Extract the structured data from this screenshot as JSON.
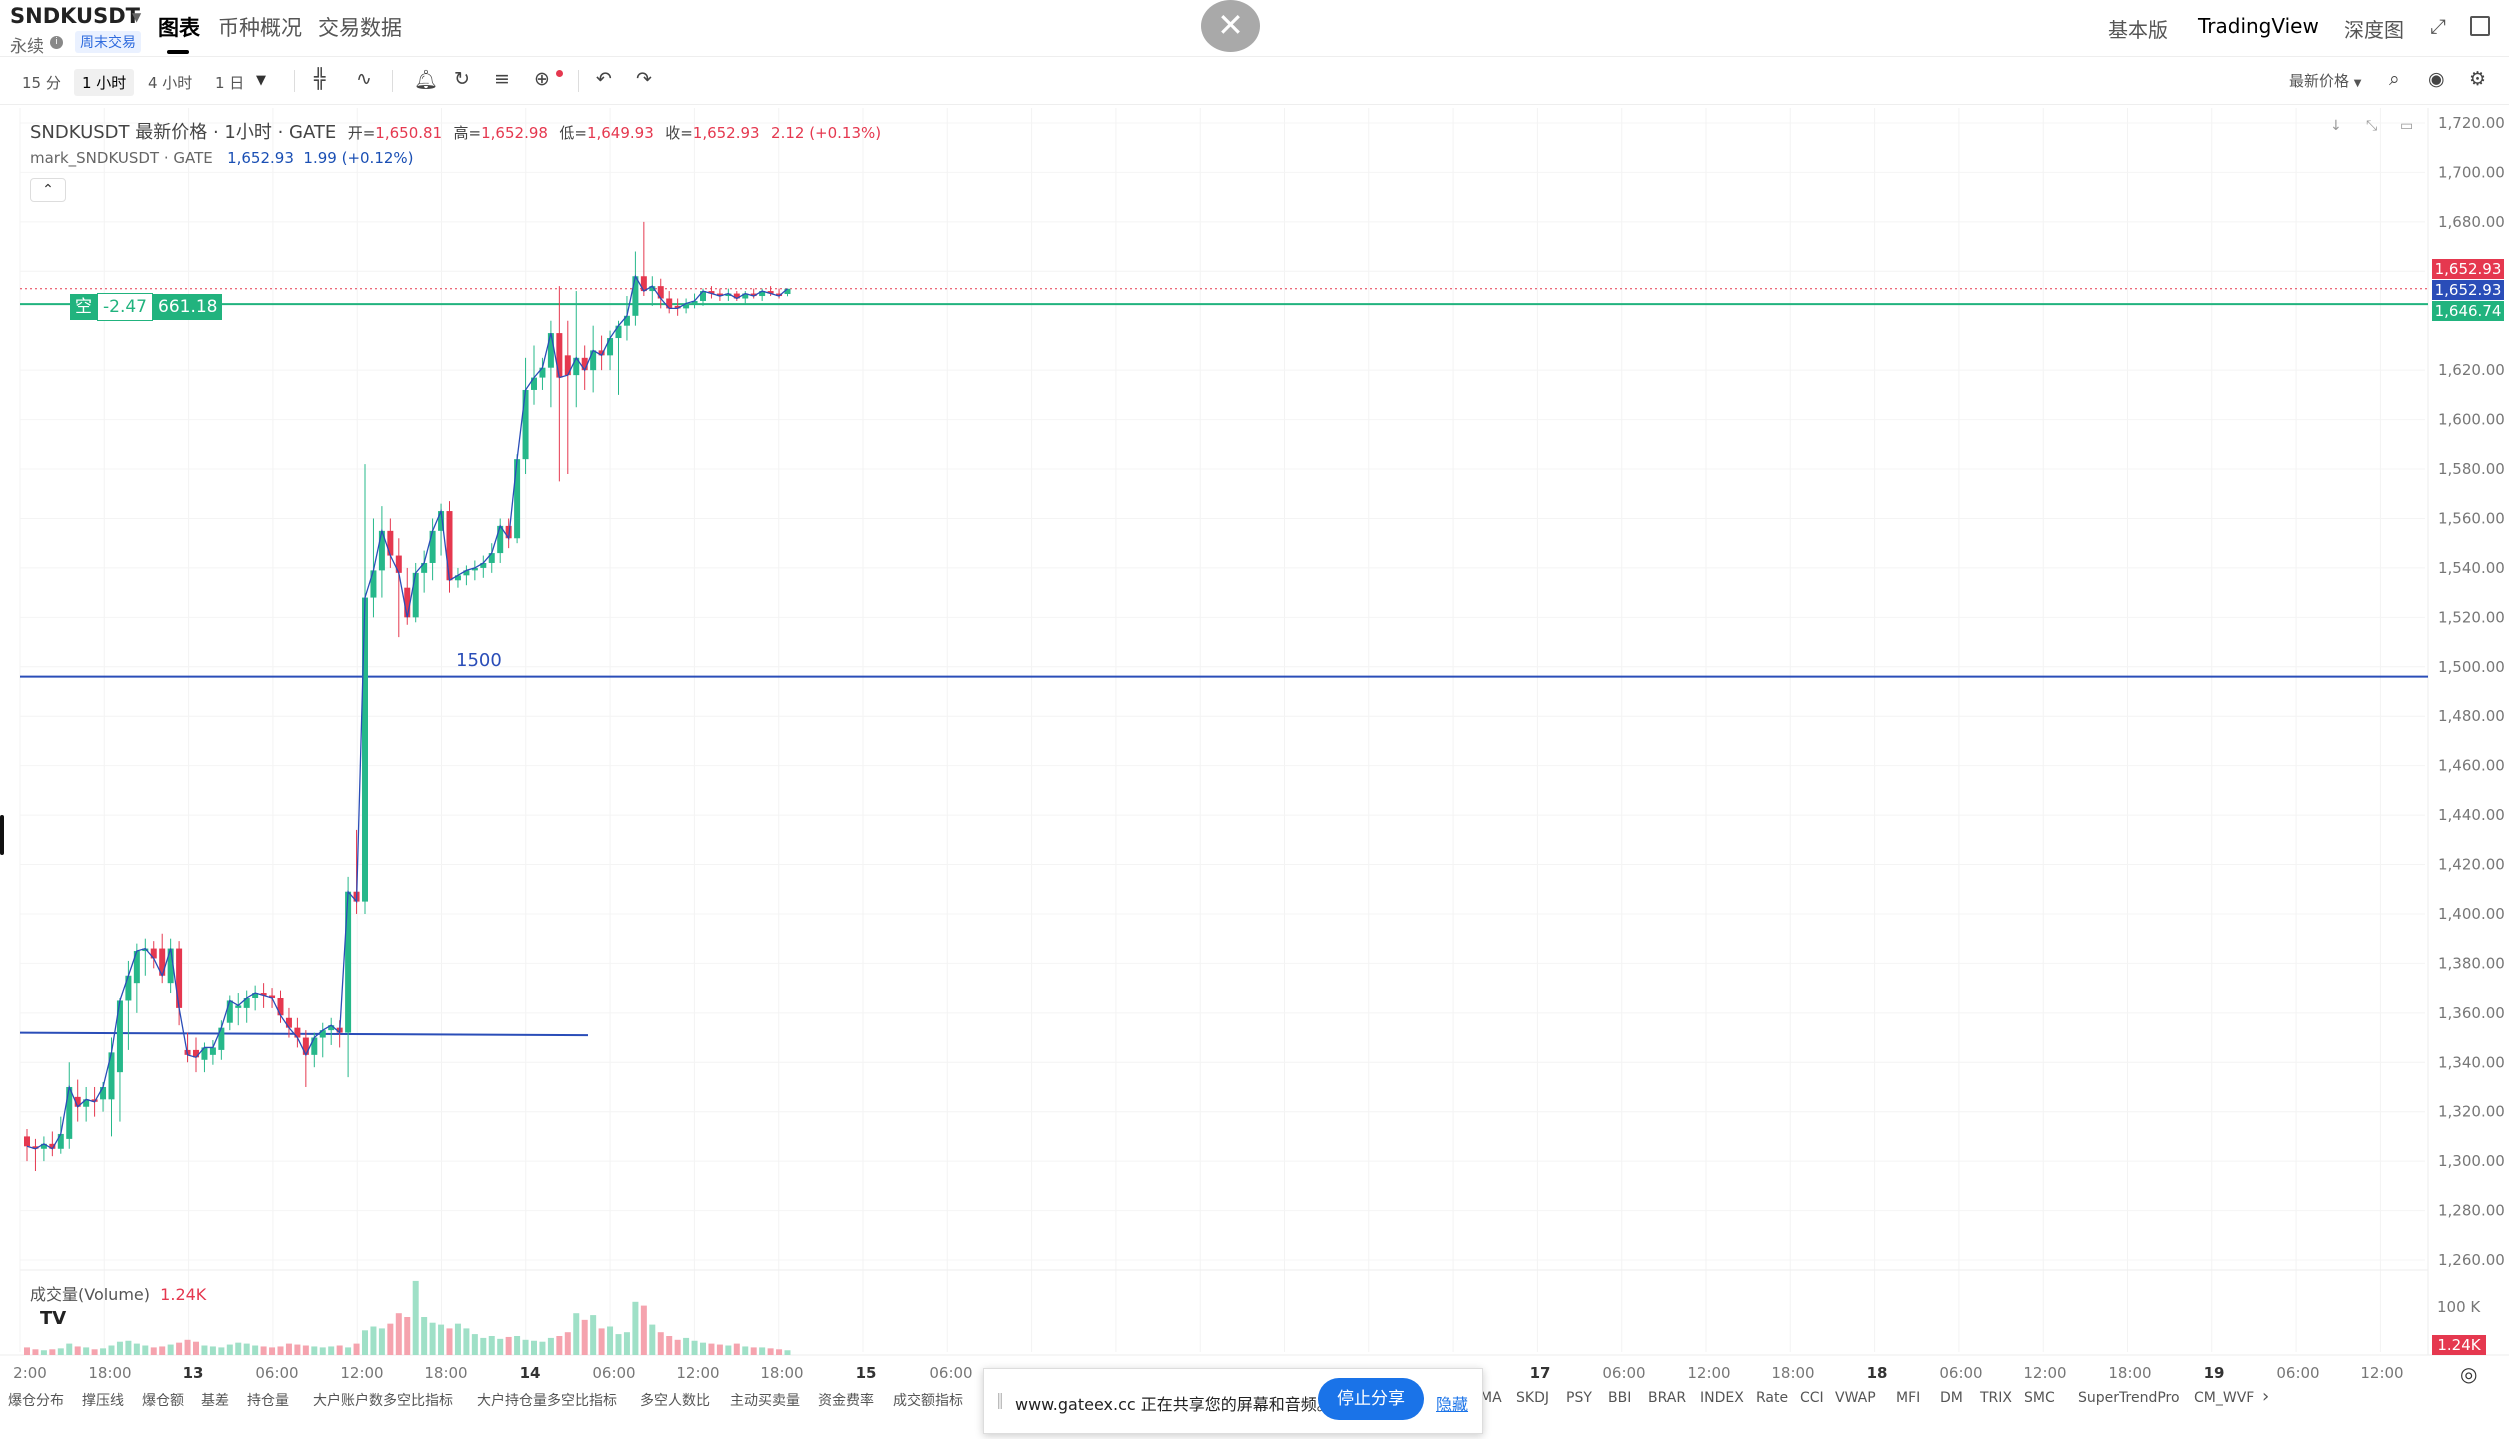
{
  "header": {
    "symbol": "SNDKUSDT",
    "perpetual": "永续",
    "weekend_badge": "周末交易",
    "tabs": [
      "图表",
      "币种概况",
      "交易数据"
    ],
    "right_tabs": [
      "基本版",
      "TradingView",
      "深度图"
    ]
  },
  "toolbar": {
    "timeframes": [
      "15 分",
      "1 小时",
      "4 小时",
      "1 日"
    ],
    "active_timeframe": "1 小时",
    "latest_price_label": "最新价格"
  },
  "legend": {
    "title": "SNDKUSDT 最新价格 · 1小时 · GATE",
    "open_label": "开=",
    "open": "1,650.81",
    "high_label": "高=",
    "high": "1,652.98",
    "low_label": "低=",
    "low": "1,649.93",
    "close_label": "收=",
    "close": "1,652.93",
    "change": "2.12 (+0.13%)",
    "mark_label": "mark_SNDKUSDT · GATE",
    "mark_price": "1,652.93",
    "mark_change": "1.99 (+0.12%)"
  },
  "position": {
    "side": "空",
    "pnl": "-2.47",
    "entry": "661.18"
  },
  "level_label": "1500",
  "price_tags": {
    "last": "1,652.93",
    "mark": "1,652.93",
    "position": "1,646.74"
  },
  "volume": {
    "label": "成交量(Volume)",
    "value": "1.24K",
    "axis_label": "100 K",
    "tag": "1.24K"
  },
  "share_banner": {
    "text": "www.gateex.cc 正在共享您的屏幕和音频。",
    "stop_label": "停止分享",
    "hide_label": "隐藏"
  },
  "indicators_left": [
    "爆仓分布",
    "撑压线",
    "爆仓额",
    "基差",
    "持仓量",
    "大户账户数多空比指标",
    "大户持仓量多空比指标",
    "多空人数比",
    "主动买卖量",
    "资金费率",
    "成交额指标"
  ],
  "indicators_right": [
    "MA",
    "SKDJ",
    "PSY",
    "BBI",
    "BRAR",
    "INDEX",
    "Rate",
    "CCI",
    "VWAP",
    "MFI",
    "DM",
    "TRIX",
    "SMC",
    "SuperTrendPro",
    "CM_WVF"
  ],
  "colors": {
    "up": "#26b88a",
    "down": "#e5384f",
    "level_line": "#2a4db8",
    "position_line": "#21b37e",
    "grid": "#f3f3f3"
  },
  "chart_data": {
    "type": "candlestick",
    "symbol": "SNDKUSDT",
    "interval": "1小时",
    "y_ticks": [
      1260,
      1280,
      1300,
      1320,
      1340,
      1360,
      1380,
      1400,
      1420,
      1440,
      1460,
      1480,
      1500,
      1520,
      1540,
      1560,
      1580,
      1600,
      1620,
      1660,
      1680,
      1700,
      1720
    ],
    "y_tick_labels": [
      "1,260.00",
      "1,280.00",
      "1,300.00",
      "1,320.00",
      "1,340.00",
      "1,360.00",
      "1,380.00",
      "1,400.00",
      "1,420.00",
      "1,440.00",
      "1,460.00",
      "1,480.00",
      "1,500.00",
      "1,520.00",
      "1,540.00",
      "1,560.00",
      "1,580.00",
      "1,600.00",
      "1,620.00",
      "1,660.00",
      "1,680.00",
      "1,700.00",
      "1,720.00"
    ],
    "ylim": [
      1250,
      1725
    ],
    "x_labels": [
      "2:00",
      "18:00",
      "13",
      "06:00",
      "12:00",
      "18:00",
      "14",
      "06:00",
      "12:00",
      "18:00",
      "15",
      "06:00",
      "17",
      "06:00",
      "12:00",
      "18:00",
      "18",
      "06:00",
      "12:00",
      "18:00",
      "19",
      "06:00",
      "12:00"
    ],
    "x_label_bold": [
      "13",
      "14",
      "15",
      "17",
      "18",
      "19"
    ],
    "horizontal_lines": [
      {
        "price": 1496,
        "label": "1500",
        "color": "#2a4db8"
      },
      {
        "price": 1646.74,
        "color": "#21b37e"
      }
    ],
    "trendline": {
      "from_price": 1352,
      "to_price": 1351
    },
    "candles": [
      {
        "o": 1310,
        "h": 1313,
        "l": 1300,
        "c": 1306
      },
      {
        "o": 1306,
        "h": 1309,
        "l": 1296,
        "c": 1305
      },
      {
        "o": 1305,
        "h": 1310,
        "l": 1300,
        "c": 1307
      },
      {
        "o": 1307,
        "h": 1312,
        "l": 1302,
        "c": 1305
      },
      {
        "o": 1305,
        "h": 1318,
        "l": 1303,
        "c": 1311
      },
      {
        "o": 1309,
        "h": 1340,
        "l": 1305,
        "c": 1330
      },
      {
        "o": 1326,
        "h": 1333,
        "l": 1316,
        "c": 1322
      },
      {
        "o": 1322,
        "h": 1330,
        "l": 1316,
        "c": 1325
      },
      {
        "o": 1325,
        "h": 1330,
        "l": 1318,
        "c": 1324
      },
      {
        "o": 1325,
        "h": 1332,
        "l": 1320,
        "c": 1330
      },
      {
        "o": 1325,
        "h": 1350,
        "l": 1310,
        "c": 1344
      },
      {
        "o": 1336,
        "h": 1366,
        "l": 1316,
        "c": 1365
      },
      {
        "o": 1365,
        "h": 1381,
        "l": 1345,
        "c": 1375
      },
      {
        "o": 1372,
        "h": 1388,
        "l": 1360,
        "c": 1385
      },
      {
        "o": 1385,
        "h": 1390,
        "l": 1375,
        "c": 1386
      },
      {
        "o": 1386,
        "h": 1389,
        "l": 1378,
        "c": 1382
      },
      {
        "o": 1386,
        "h": 1392,
        "l": 1372,
        "c": 1375
      },
      {
        "o": 1372,
        "h": 1390,
        "l": 1368,
        "c": 1386
      },
      {
        "o": 1386,
        "h": 1389,
        "l": 1355,
        "c": 1362
      },
      {
        "o": 1345,
        "h": 1352,
        "l": 1340,
        "c": 1343
      },
      {
        "o": 1345,
        "h": 1350,
        "l": 1336,
        "c": 1342
      },
      {
        "o": 1341,
        "h": 1348,
        "l": 1336,
        "c": 1346
      },
      {
        "o": 1343,
        "h": 1349,
        "l": 1339,
        "c": 1346
      },
      {
        "o": 1345,
        "h": 1357,
        "l": 1341,
        "c": 1354
      },
      {
        "o": 1356,
        "h": 1367,
        "l": 1353,
        "c": 1365
      },
      {
        "o": 1362,
        "h": 1368,
        "l": 1355,
        "c": 1363
      },
      {
        "o": 1362,
        "h": 1369,
        "l": 1356,
        "c": 1366
      },
      {
        "o": 1366,
        "h": 1371,
        "l": 1361,
        "c": 1368
      },
      {
        "o": 1368,
        "h": 1372,
        "l": 1362,
        "c": 1367
      },
      {
        "o": 1367,
        "h": 1370,
        "l": 1362,
        "c": 1366
      },
      {
        "o": 1366,
        "h": 1369,
        "l": 1356,
        "c": 1359
      },
      {
        "o": 1358,
        "h": 1362,
        "l": 1350,
        "c": 1354
      },
      {
        "o": 1354,
        "h": 1358,
        "l": 1346,
        "c": 1350
      },
      {
        "o": 1350,
        "h": 1353,
        "l": 1330,
        "c": 1343
      },
      {
        "o": 1343,
        "h": 1352,
        "l": 1338,
        "c": 1350
      },
      {
        "o": 1350,
        "h": 1356,
        "l": 1342,
        "c": 1353
      },
      {
        "o": 1353,
        "h": 1358,
        "l": 1347,
        "c": 1355
      },
      {
        "o": 1354,
        "h": 1357,
        "l": 1346,
        "c": 1352
      },
      {
        "o": 1352,
        "h": 1415,
        "l": 1334,
        "c": 1409
      },
      {
        "o": 1409,
        "h": 1434,
        "l": 1400,
        "c": 1405
      },
      {
        "o": 1405,
        "h": 1582,
        "l": 1400,
        "c": 1528
      },
      {
        "o": 1528,
        "h": 1560,
        "l": 1520,
        "c": 1539
      },
      {
        "o": 1539,
        "h": 1565,
        "l": 1528,
        "c": 1555
      },
      {
        "o": 1555,
        "h": 1560,
        "l": 1540,
        "c": 1545
      },
      {
        "o": 1545,
        "h": 1552,
        "l": 1512,
        "c": 1538
      },
      {
        "o": 1532,
        "h": 1540,
        "l": 1517,
        "c": 1520
      },
      {
        "o": 1520,
        "h": 1542,
        "l": 1518,
        "c": 1538
      },
      {
        "o": 1538,
        "h": 1547,
        "l": 1530,
        "c": 1542
      },
      {
        "o": 1542,
        "h": 1560,
        "l": 1535,
        "c": 1555
      },
      {
        "o": 1555,
        "h": 1566,
        "l": 1545,
        "c": 1563
      },
      {
        "o": 1563,
        "h": 1567,
        "l": 1530,
        "c": 1535
      },
      {
        "o": 1535,
        "h": 1540,
        "l": 1532,
        "c": 1537
      },
      {
        "o": 1537,
        "h": 1541,
        "l": 1533,
        "c": 1539
      },
      {
        "o": 1539,
        "h": 1543,
        "l": 1535,
        "c": 1540
      },
      {
        "o": 1540,
        "h": 1545,
        "l": 1536,
        "c": 1542
      },
      {
        "o": 1542,
        "h": 1550,
        "l": 1538,
        "c": 1546
      },
      {
        "o": 1546,
        "h": 1560,
        "l": 1542,
        "c": 1557
      },
      {
        "o": 1557,
        "h": 1560,
        "l": 1548,
        "c": 1552
      },
      {
        "o": 1552,
        "h": 1586,
        "l": 1550,
        "c": 1584
      },
      {
        "o": 1584,
        "h": 1625,
        "l": 1578,
        "c": 1612
      },
      {
        "o": 1612,
        "h": 1630,
        "l": 1606,
        "c": 1617
      },
      {
        "o": 1617,
        "h": 1625,
        "l": 1612,
        "c": 1621
      },
      {
        "o": 1621,
        "h": 1640,
        "l": 1605,
        "c": 1635
      },
      {
        "o": 1635,
        "h": 1654,
        "l": 1575,
        "c": 1617
      },
      {
        "o": 1626,
        "h": 1640,
        "l": 1578,
        "c": 1618
      },
      {
        "o": 1618,
        "h": 1652,
        "l": 1605,
        "c": 1625
      },
      {
        "o": 1625,
        "h": 1630,
        "l": 1612,
        "c": 1620
      },
      {
        "o": 1620,
        "h": 1638,
        "l": 1611,
        "c": 1628
      },
      {
        "o": 1628,
        "h": 1634,
        "l": 1620,
        "c": 1626
      },
      {
        "o": 1626,
        "h": 1636,
        "l": 1620,
        "c": 1633
      },
      {
        "o": 1633,
        "h": 1640,
        "l": 1610,
        "c": 1638
      },
      {
        "o": 1638,
        "h": 1650,
        "l": 1632,
        "c": 1642
      },
      {
        "o": 1642,
        "h": 1668,
        "l": 1638,
        "c": 1658
      },
      {
        "o": 1658,
        "h": 1680,
        "l": 1650,
        "c": 1652
      },
      {
        "o": 1652,
        "h": 1658,
        "l": 1646,
        "c": 1654
      },
      {
        "o": 1654,
        "h": 1657,
        "l": 1645,
        "c": 1649
      },
      {
        "o": 1649,
        "h": 1652,
        "l": 1643,
        "c": 1645
      },
      {
        "o": 1646,
        "h": 1649,
        "l": 1642,
        "c": 1645
      },
      {
        "o": 1645,
        "h": 1649,
        "l": 1643,
        "c": 1647
      },
      {
        "o": 1647,
        "h": 1651,
        "l": 1645,
        "c": 1648
      },
      {
        "o": 1648,
        "h": 1653,
        "l": 1646,
        "c": 1652
      },
      {
        "o": 1652,
        "h": 1654,
        "l": 1649,
        "c": 1651
      },
      {
        "o": 1651,
        "h": 1653,
        "l": 1648,
        "c": 1650
      },
      {
        "o": 1650,
        "h": 1653,
        "l": 1648,
        "c": 1651
      },
      {
        "o": 1651,
        "h": 1652,
        "l": 1648,
        "c": 1649
      },
      {
        "o": 1649,
        "h": 1652,
        "l": 1647,
        "c": 1651
      },
      {
        "o": 1651,
        "h": 1653,
        "l": 1649,
        "c": 1650
      },
      {
        "o": 1650,
        "h": 1653,
        "l": 1648,
        "c": 1652
      },
      {
        "o": 1652,
        "h": 1654,
        "l": 1650,
        "c": 1651
      },
      {
        "o": 1651,
        "h": 1653,
        "l": 1649,
        "c": 1650
      },
      {
        "o": 1650.81,
        "h": 1652.98,
        "l": 1649.93,
        "c": 1652.93
      }
    ],
    "volumes": [
      8,
      6,
      5,
      6,
      7,
      12,
      9,
      8,
      6,
      7,
      10,
      14,
      15,
      12,
      10,
      8,
      9,
      11,
      13,
      16,
      14,
      10,
      9,
      8,
      11,
      13,
      12,
      10,
      9,
      8,
      9,
      12,
      11,
      10,
      9,
      8,
      9,
      10,
      8,
      12,
      26,
      30,
      28,
      33,
      44,
      40,
      78,
      40,
      34,
      32,
      28,
      33,
      28,
      22,
      18,
      20,
      17,
      19,
      20,
      16,
      15,
      14,
      18,
      20,
      24,
      44,
      37,
      42,
      28,
      30,
      22,
      24,
      56,
      52,
      32,
      24,
      20,
      16,
      18,
      15,
      13,
      12,
      11,
      10,
      12,
      9,
      8,
      8,
      7,
      6,
      5
    ],
    "volume_max_units": "1.24K"
  }
}
